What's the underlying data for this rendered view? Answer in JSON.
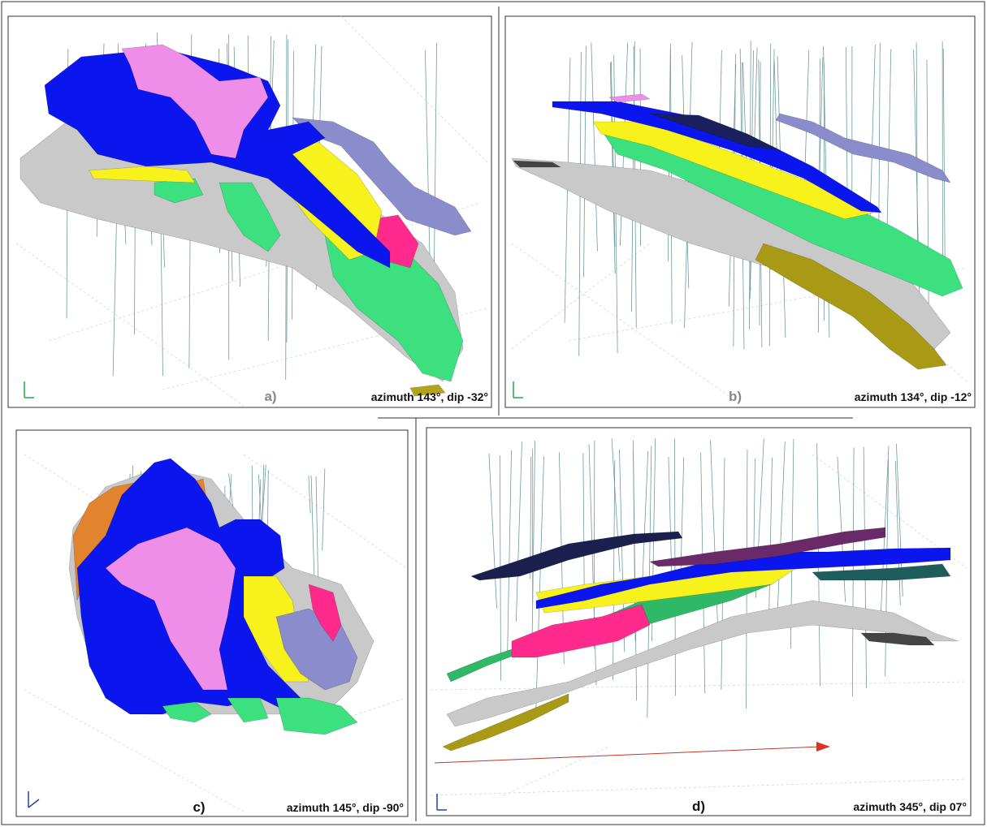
{
  "panels": [
    {
      "label": "a)",
      "caption": "azimuth 143°, dip -32°"
    },
    {
      "label": "b)",
      "caption": "azimuth 134°, dip -12°"
    },
    {
      "label": "c)",
      "caption": "azimuth 145°, dip -90°"
    },
    {
      "label": "d)",
      "caption": "azimuth 345°, dip 07°"
    }
  ]
}
